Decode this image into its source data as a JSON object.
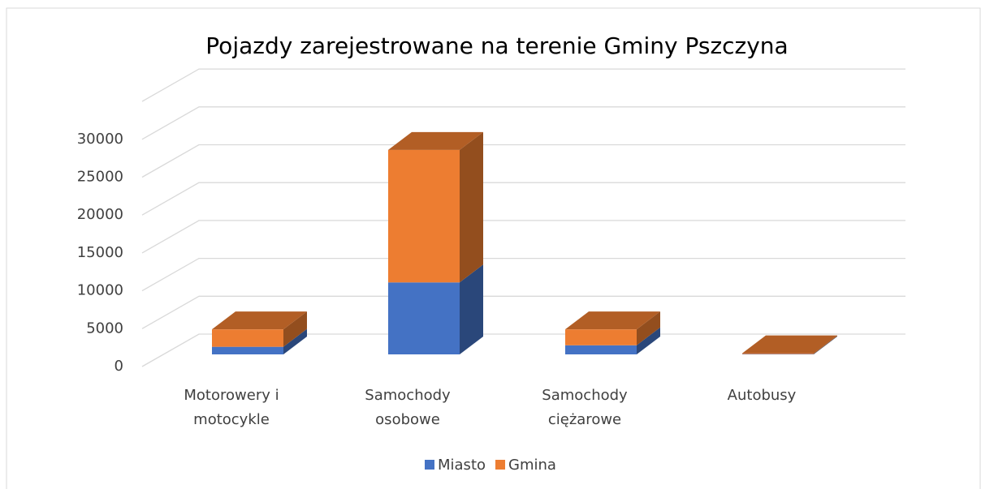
{
  "chart_data": {
    "type": "bar3d_stacked",
    "title": "Pojazdy zarejestrowane na terenie Gminy Pszczyna",
    "categories": [
      "Motorowery i\nmotocykle",
      "Samochody\nosobowe",
      "Samochody\nciężarowe",
      "Autobusy"
    ],
    "series": [
      {
        "name": "Miasto",
        "color": "#4472c4",
        "values": [
          1000,
          9500,
          1200,
          50
        ]
      },
      {
        "name": "Gmina",
        "color": "#ed7d31",
        "values": [
          2300,
          17500,
          2100,
          100
        ]
      }
    ],
    "ylim": [
      0,
      35000
    ],
    "yticks": [
      0,
      5000,
      10000,
      15000,
      20000,
      25000,
      30000
    ],
    "grid": true,
    "legend": "bottom"
  }
}
